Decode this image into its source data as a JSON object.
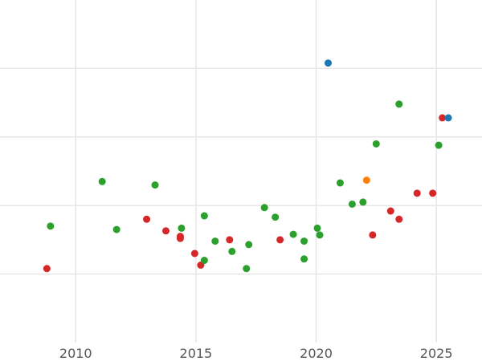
{
  "chart_data": {
    "type": "scatter",
    "title": "",
    "xlabel": "",
    "ylabel": "",
    "xlim": [
      2006.85,
      2026.9
    ],
    "ylim": [
      0,
      5
    ],
    "x_ticks": [
      {
        "value": 2010,
        "label": "2010"
      },
      {
        "value": 2015,
        "label": "2015"
      },
      {
        "value": 2020,
        "label": "2020"
      },
      {
        "value": 2025,
        "label": "2025"
      }
    ],
    "y_gridlines": [
      1,
      2,
      3,
      4
    ],
    "x_gridlines": [
      2010,
      2015,
      2020,
      2025
    ],
    "grid": true,
    "legend": "none",
    "colors": {
      "blue": "#1f77b4",
      "orange": "#ff7f0e",
      "green": "#2ca02c",
      "red": "#d62728"
    },
    "points": [
      {
        "x": 2008.8,
        "y": 1.08,
        "color": "red"
      },
      {
        "x": 2008.95,
        "y": 1.7,
        "color": "green"
      },
      {
        "x": 2011.1,
        "y": 2.35,
        "color": "green"
      },
      {
        "x": 2011.7,
        "y": 1.65,
        "color": "green"
      },
      {
        "x": 2012.95,
        "y": 1.8,
        "color": "red"
      },
      {
        "x": 2013.3,
        "y": 2.3,
        "color": "green"
      },
      {
        "x": 2013.75,
        "y": 1.63,
        "color": "red"
      },
      {
        "x": 2014.35,
        "y": 1.55,
        "color": "red"
      },
      {
        "x": 2014.35,
        "y": 1.52,
        "color": "red"
      },
      {
        "x": 2014.4,
        "y": 1.67,
        "color": "green"
      },
      {
        "x": 2014.95,
        "y": 1.3,
        "color": "red"
      },
      {
        "x": 2015.2,
        "y": 1.13,
        "color": "red"
      },
      {
        "x": 2015.35,
        "y": 1.85,
        "color": "green"
      },
      {
        "x": 2015.35,
        "y": 1.2,
        "color": "green"
      },
      {
        "x": 2015.8,
        "y": 1.48,
        "color": "green"
      },
      {
        "x": 2016.4,
        "y": 1.5,
        "color": "red"
      },
      {
        "x": 2016.5,
        "y": 1.33,
        "color": "green"
      },
      {
        "x": 2017.1,
        "y": 1.08,
        "color": "green"
      },
      {
        "x": 2017.2,
        "y": 1.43,
        "color": "green"
      },
      {
        "x": 2017.85,
        "y": 1.97,
        "color": "green"
      },
      {
        "x": 2018.3,
        "y": 1.83,
        "color": "green"
      },
      {
        "x": 2018.5,
        "y": 1.5,
        "color": "red"
      },
      {
        "x": 2019.05,
        "y": 1.58,
        "color": "green"
      },
      {
        "x": 2019.5,
        "y": 1.48,
        "color": "green"
      },
      {
        "x": 2019.5,
        "y": 1.22,
        "color": "green"
      },
      {
        "x": 2020.05,
        "y": 1.67,
        "color": "green"
      },
      {
        "x": 2020.15,
        "y": 1.57,
        "color": "green"
      },
      {
        "x": 2020.5,
        "y": 4.08,
        "color": "blue"
      },
      {
        "x": 2021.0,
        "y": 2.33,
        "color": "green"
      },
      {
        "x": 2021.5,
        "y": 2.02,
        "color": "green"
      },
      {
        "x": 2021.95,
        "y": 2.05,
        "color": "green"
      },
      {
        "x": 2022.1,
        "y": 2.37,
        "color": "orange"
      },
      {
        "x": 2022.35,
        "y": 1.57,
        "color": "red"
      },
      {
        "x": 2022.5,
        "y": 2.9,
        "color": "green"
      },
      {
        "x": 2023.1,
        "y": 1.92,
        "color": "red"
      },
      {
        "x": 2023.45,
        "y": 1.8,
        "color": "red"
      },
      {
        "x": 2023.45,
        "y": 3.48,
        "color": "green"
      },
      {
        "x": 2024.2,
        "y": 2.18,
        "color": "red"
      },
      {
        "x": 2024.85,
        "y": 2.18,
        "color": "red"
      },
      {
        "x": 2025.1,
        "y": 2.88,
        "color": "green"
      },
      {
        "x": 2025.25,
        "y": 3.28,
        "color": "red"
      },
      {
        "x": 2025.5,
        "y": 3.28,
        "color": "blue"
      }
    ]
  }
}
